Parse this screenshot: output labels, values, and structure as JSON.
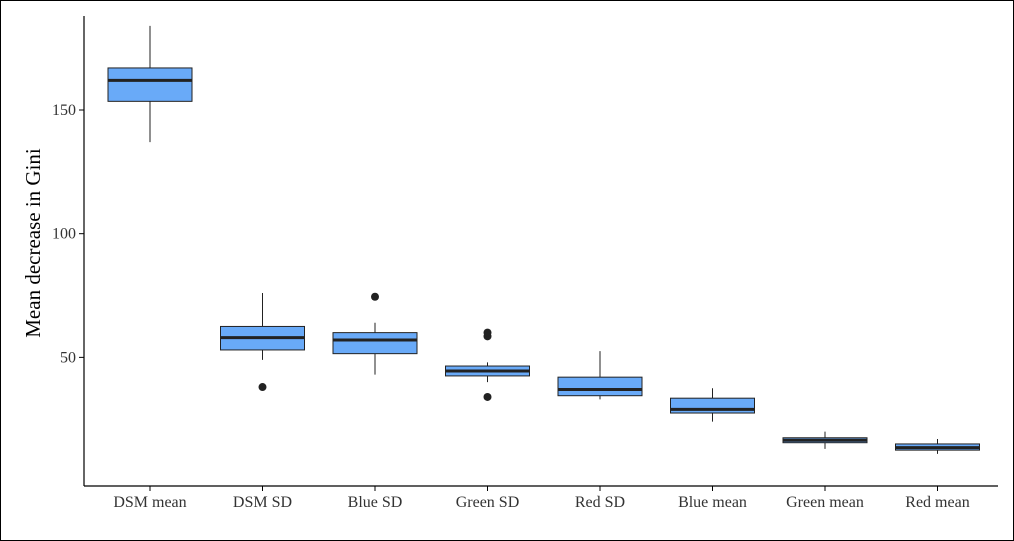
{
  "chart_data": {
    "type": "boxplot",
    "title": "",
    "xlabel": "",
    "ylabel": "Mean decrease in Gini",
    "ylim": [
      -2,
      188
    ],
    "yticks": [
      50,
      100,
      150
    ],
    "grid": false,
    "legend": "none",
    "colors": {
      "box_fill": "#69aaf8",
      "box_stroke": "#222222",
      "median": "#222222",
      "outlier": "#222222",
      "axis": "#000000"
    },
    "categories": [
      "DSM mean",
      "DSM SD",
      "Blue SD",
      "Green SD",
      "Red SD",
      "Blue mean",
      "Green mean",
      "Red mean"
    ],
    "boxes": [
      {
        "name": "DSM mean",
        "min": 137,
        "q1": 153.5,
        "median": 162,
        "q3": 167,
        "max": 184,
        "outliers": []
      },
      {
        "name": "DSM SD",
        "min": 49,
        "q1": 53,
        "median": 58,
        "q3": 62.5,
        "max": 76,
        "outliers": [
          38
        ]
      },
      {
        "name": "Blue SD",
        "min": 43,
        "q1": 51.5,
        "median": 57,
        "q3": 60,
        "max": 64,
        "outliers": [
          74.5
        ]
      },
      {
        "name": "Green SD",
        "min": 40,
        "q1": 42.5,
        "median": 44.5,
        "q3": 46.5,
        "max": 48,
        "outliers": [
          34,
          58.5,
          60
        ]
      },
      {
        "name": "Red SD",
        "min": 33,
        "q1": 34.5,
        "median": 37,
        "q3": 42,
        "max": 52.5,
        "outliers": []
      },
      {
        "name": "Blue mean",
        "min": 24,
        "q1": 27.5,
        "median": 29,
        "q3": 33.5,
        "max": 37.5,
        "outliers": []
      },
      {
        "name": "Green mean",
        "min": 13,
        "q1": 15.5,
        "median": 16.5,
        "q3": 17.5,
        "max": 20,
        "outliers": []
      },
      {
        "name": "Red mean",
        "min": 11,
        "q1": 12.5,
        "median": 13.5,
        "q3": 15,
        "max": 17,
        "outliers": []
      }
    ]
  }
}
